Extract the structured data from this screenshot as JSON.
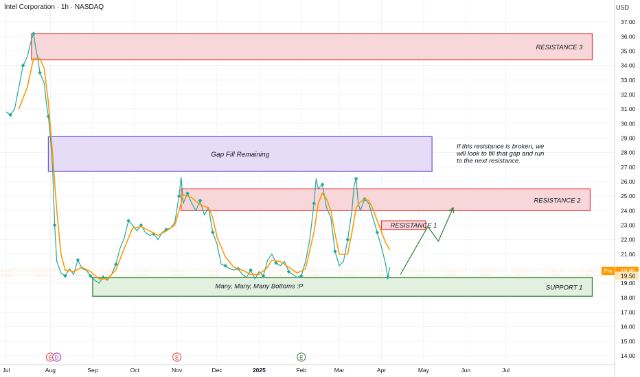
{
  "header": {
    "symbol_title": "Intel Corporation · 1h · NASDAQ",
    "currency": "USD"
  },
  "colors": {
    "price_line": "#26a69a",
    "ma_line": "#ff9800",
    "resistance": "#e53935",
    "resistance_fill": "#f8d7da",
    "gap_border": "#7b4fc9",
    "gap_fill": "#e6dcf7",
    "support_border": "#2e7d32",
    "support_fill": "#e2f1df",
    "arrow": "#2e7d32",
    "pre_badge": "#ff9800",
    "current_badge": "#ffe5b4"
  },
  "chart_data": {
    "type": "line",
    "title": "Intel Corporation · 1h · NASDAQ",
    "xlabel": "",
    "ylabel": "USD",
    "ylim": [
      13.5,
      37.5
    ],
    "y_ticks": [
      "14.00",
      "15.00",
      "16.00",
      "17.00",
      "18.00",
      "19.00",
      "20.00",
      "21.00",
      "22.00",
      "23.00",
      "24.00",
      "25.00",
      "26.00",
      "27.00",
      "28.00",
      "29.00",
      "30.00",
      "31.00",
      "32.00",
      "33.00",
      "34.00",
      "35.00",
      "36.00",
      "37.00"
    ],
    "x_ticks": [
      {
        "label": "Jul",
        "t": 0
      },
      {
        "label": "Aug",
        "t": 1.05
      },
      {
        "label": "Sep",
        "t": 2.05
      },
      {
        "label": "Oct",
        "t": 3.05
      },
      {
        "label": "Nov",
        "t": 4.05
      },
      {
        "label": "Dec",
        "t": 5.0
      },
      {
        "label": "2025",
        "t": 6.0
      },
      {
        "label": "Feb",
        "t": 7.0
      },
      {
        "label": "Mar",
        "t": 7.9
      },
      {
        "label": "Apr",
        "t": 8.9
      },
      {
        "label": "May",
        "t": 9.9
      },
      {
        "label": "Jun",
        "t": 10.9
      },
      {
        "label": "Jul",
        "t": 11.85
      }
    ],
    "grid": true,
    "series": [
      {
        "values": [
          [
            0.0,
            30.8
          ],
          [
            0.1,
            30.6
          ],
          [
            0.2,
            31.0
          ],
          [
            0.3,
            32.5
          ],
          [
            0.4,
            34.0
          ],
          [
            0.5,
            34.6
          ],
          [
            0.6,
            35.8
          ],
          [
            0.65,
            36.2
          ],
          [
            0.7,
            35.2
          ],
          [
            0.75,
            34.5
          ],
          [
            0.8,
            33.5
          ],
          [
            0.9,
            32.8
          ],
          [
            0.95,
            31.5
          ],
          [
            1.0,
            30.5
          ],
          [
            1.05,
            29.0
          ],
          [
            1.1,
            27.0
          ],
          [
            1.15,
            23.0
          ],
          [
            1.2,
            20.5
          ],
          [
            1.3,
            19.7
          ],
          [
            1.4,
            19.5
          ],
          [
            1.5,
            20.0
          ],
          [
            1.6,
            19.6
          ],
          [
            1.7,
            20.6
          ],
          [
            1.8,
            20.0
          ],
          [
            1.9,
            19.9
          ],
          [
            2.0,
            19.5
          ],
          [
            2.1,
            19.2
          ],
          [
            2.2,
            19.0
          ],
          [
            2.3,
            19.4
          ],
          [
            2.4,
            19.2
          ],
          [
            2.5,
            19.6
          ],
          [
            2.6,
            20.3
          ],
          [
            2.7,
            21.4
          ],
          [
            2.8,
            22.1
          ],
          [
            2.9,
            23.3
          ],
          [
            3.0,
            23.0
          ],
          [
            3.1,
            22.6
          ],
          [
            3.2,
            23.0
          ],
          [
            3.3,
            22.5
          ],
          [
            3.4,
            22.3
          ],
          [
            3.5,
            22.4
          ],
          [
            3.6,
            22.0
          ],
          [
            3.7,
            22.5
          ],
          [
            3.8,
            22.7
          ],
          [
            3.9,
            22.8
          ],
          [
            4.0,
            23.2
          ],
          [
            4.1,
            25.0
          ],
          [
            4.15,
            26.3
          ],
          [
            4.2,
            24.5
          ],
          [
            4.3,
            25.2
          ],
          [
            4.4,
            24.5
          ],
          [
            4.5,
            24.0
          ],
          [
            4.6,
            24.7
          ],
          [
            4.7,
            23.7
          ],
          [
            4.8,
            24.2
          ],
          [
            4.9,
            22.5
          ],
          [
            5.0,
            21.7
          ],
          [
            5.1,
            20.3
          ],
          [
            5.2,
            20.2
          ],
          [
            5.3,
            20.0
          ],
          [
            5.4,
            19.9
          ],
          [
            5.5,
            20.0
          ],
          [
            5.6,
            19.6
          ],
          [
            5.7,
            19.4
          ],
          [
            5.8,
            19.9
          ],
          [
            5.9,
            19.3
          ],
          [
            6.0,
            19.8
          ],
          [
            6.1,
            19.5
          ],
          [
            6.2,
            20.6
          ],
          [
            6.3,
            21.0
          ],
          [
            6.4,
            20.4
          ],
          [
            6.5,
            20.2
          ],
          [
            6.6,
            20.5
          ],
          [
            6.7,
            19.8
          ],
          [
            6.8,
            19.6
          ],
          [
            6.9,
            19.4
          ],
          [
            7.0,
            19.5
          ],
          [
            7.1,
            20.5
          ],
          [
            7.2,
            22.0
          ],
          [
            7.3,
            24.5
          ],
          [
            7.35,
            26.2
          ],
          [
            7.4,
            25.5
          ],
          [
            7.5,
            25.8
          ],
          [
            7.6,
            24.2
          ],
          [
            7.7,
            23.5
          ],
          [
            7.8,
            21.2
          ],
          [
            7.9,
            20.2
          ],
          [
            8.0,
            20.5
          ],
          [
            8.1,
            22.0
          ],
          [
            8.2,
            24.0
          ],
          [
            8.25,
            25.7
          ],
          [
            8.3,
            26.2
          ],
          [
            8.35,
            24.5
          ],
          [
            8.4,
            24.0
          ],
          [
            8.5,
            24.8
          ],
          [
            8.6,
            24.5
          ],
          [
            8.7,
            23.5
          ],
          [
            8.8,
            22.5
          ],
          [
            8.9,
            21.5
          ],
          [
            9.0,
            20.3
          ],
          [
            9.05,
            19.4
          ],
          [
            9.1,
            20.1
          ]
        ]
      },
      {
        "values": [
          [
            0.3,
            31.0
          ],
          [
            0.5,
            32.5
          ],
          [
            0.65,
            34.5
          ],
          [
            0.8,
            34.5
          ],
          [
            0.9,
            33.8
          ],
          [
            1.0,
            31.5
          ],
          [
            1.1,
            28.0
          ],
          [
            1.2,
            24.0
          ],
          [
            1.3,
            21.0
          ],
          [
            1.4,
            19.9
          ],
          [
            1.6,
            19.8
          ],
          [
            1.8,
            20.1
          ],
          [
            2.0,
            19.8
          ],
          [
            2.2,
            19.3
          ],
          [
            2.4,
            19.3
          ],
          [
            2.6,
            19.9
          ],
          [
            2.8,
            21.4
          ],
          [
            3.0,
            22.8
          ],
          [
            3.2,
            22.9
          ],
          [
            3.4,
            22.6
          ],
          [
            3.6,
            22.3
          ],
          [
            3.8,
            22.6
          ],
          [
            4.0,
            23.0
          ],
          [
            4.1,
            24.0
          ],
          [
            4.2,
            25.1
          ],
          [
            4.4,
            24.9
          ],
          [
            4.6,
            24.4
          ],
          [
            4.8,
            24.2
          ],
          [
            4.9,
            23.5
          ],
          [
            5.0,
            22.2
          ],
          [
            5.2,
            20.8
          ],
          [
            5.4,
            20.1
          ],
          [
            5.6,
            19.9
          ],
          [
            5.8,
            19.6
          ],
          [
            6.0,
            19.6
          ],
          [
            6.2,
            20.1
          ],
          [
            6.3,
            20.6
          ],
          [
            6.5,
            20.5
          ],
          [
            6.7,
            20.1
          ],
          [
            6.9,
            19.7
          ],
          [
            7.1,
            20.0
          ],
          [
            7.3,
            22.5
          ],
          [
            7.4,
            24.5
          ],
          [
            7.5,
            25.2
          ],
          [
            7.6,
            24.8
          ],
          [
            7.7,
            24.0
          ],
          [
            7.8,
            22.4
          ],
          [
            7.9,
            21.0
          ],
          [
            8.1,
            21.0
          ],
          [
            8.2,
            22.5
          ],
          [
            8.3,
            24.2
          ],
          [
            8.4,
            24.6
          ],
          [
            8.5,
            24.8
          ],
          [
            8.6,
            24.7
          ],
          [
            8.7,
            24.1
          ],
          [
            8.8,
            23.3
          ],
          [
            9.0,
            21.8
          ],
          [
            9.1,
            21.3
          ]
        ]
      }
    ],
    "zones": [
      {
        "label": "RESISTANCE 3",
        "t0": 0.6,
        "t1": 13.9,
        "y_low": 34.4,
        "y_high": 36.2,
        "kind": "resistance"
      },
      {
        "label": "Gap Fill Remaining",
        "t0": 1.0,
        "t1": 10.1,
        "y_low": 26.7,
        "y_high": 29.1,
        "kind": "gap"
      },
      {
        "label": "RESISTANCE 2",
        "t0": 4.15,
        "t1": 13.85,
        "y_low": 24.0,
        "y_high": 25.5,
        "kind": "resistance"
      },
      {
        "label": "RESISTANCE 1",
        "t0": 8.9,
        "t1": 9.95,
        "y_low": 22.7,
        "y_high": 23.3,
        "kind": "resistance"
      },
      {
        "label": "SUPPORT 1",
        "t0": 2.05,
        "t1": 13.9,
        "y_low": 18.1,
        "y_high": 19.4,
        "kind": "support"
      }
    ],
    "annotations": [
      {
        "text": "Many, Many, Many Bottoms :P",
        "t": 6.0,
        "y": 18.65
      },
      {
        "text": "If this resistance is broken, we\nwill look to fill that gap and run\nto the next resistance.",
        "t": 10.7,
        "y": 28.3
      }
    ],
    "projection": [
      [
        9.35,
        19.6
      ],
      [
        10.0,
        22.9
      ],
      [
        10.25,
        21.9
      ],
      [
        10.6,
        24.2
      ]
    ],
    "price_labels": [
      {
        "tag": "Pre",
        "value": "19.85"
      },
      {
        "tag": "",
        "value": "19.56"
      }
    ],
    "event_markers": [
      {
        "label": "E",
        "t": 1.05,
        "color": "#e53935"
      },
      {
        "label": "D",
        "t": 1.2,
        "color": "#9c27b0"
      },
      {
        "label": "E",
        "t": 4.05,
        "color": "#e53935"
      },
      {
        "label": "E",
        "t": 7.0,
        "color": "#2e7d32"
      }
    ]
  }
}
